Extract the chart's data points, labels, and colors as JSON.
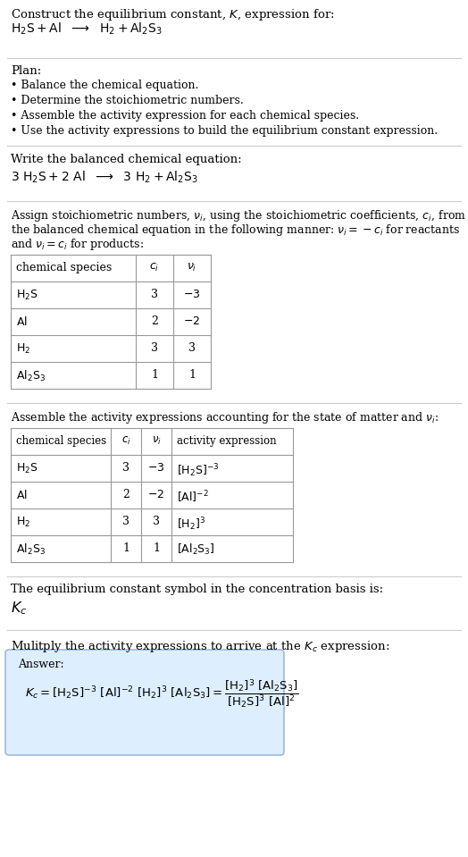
{
  "title_line1": "Construct the equilibrium constant, $K$, expression for:",
  "title_line2": "$\\mathrm{H_2S + Al}$  $\\longrightarrow$  $\\mathrm{H_2 + Al_2S_3}$",
  "plan_header": "Plan:",
  "plan_bullets": [
    "• Balance the chemical equation.",
    "• Determine the stoichiometric numbers.",
    "• Assemble the activity expression for each chemical species.",
    "• Use the activity expressions to build the equilibrium constant expression."
  ],
  "balanced_header": "Write the balanced chemical equation:",
  "balanced_eq": "$3\\ \\mathrm{H_2S} + 2\\ \\mathrm{Al}$  $\\longrightarrow$  $3\\ \\mathrm{H_2} + \\mathrm{Al_2S_3}$",
  "stoich_header_parts": [
    "Assign stoichiometric numbers, $\\nu_i$, using the stoichiometric coefficients, $c_i$, from",
    "the balanced chemical equation in the following manner: $\\nu_i = -c_i$ for reactants",
    "and $\\nu_i = c_i$ for products:"
  ],
  "table1_cols": [
    "chemical species",
    "$c_i$",
    "$\\nu_i$"
  ],
  "table1_rows": [
    [
      "$\\mathrm{H_2S}$",
      "3",
      "$-3$"
    ],
    [
      "$\\mathrm{Al}$",
      "2",
      "$-2$"
    ],
    [
      "$\\mathrm{H_2}$",
      "3",
      "3"
    ],
    [
      "$\\mathrm{Al_2S_3}$",
      "1",
      "1"
    ]
  ],
  "activity_header": "Assemble the activity expressions accounting for the state of matter and $\\nu_i$:",
  "table2_cols": [
    "chemical species",
    "$c_i$",
    "$\\nu_i$",
    "activity expression"
  ],
  "table2_rows": [
    [
      "$\\mathrm{H_2S}$",
      "3",
      "$-3$",
      "$[\\mathrm{H_2S}]^{-3}$"
    ],
    [
      "$\\mathrm{Al}$",
      "2",
      "$-2$",
      "$[\\mathrm{Al}]^{-2}$"
    ],
    [
      "$\\mathrm{H_2}$",
      "3",
      "3",
      "$[\\mathrm{H_2}]^3$"
    ],
    [
      "$\\mathrm{Al_2S_3}$",
      "1",
      "1",
      "$[\\mathrm{Al_2S_3}]$"
    ]
  ],
  "kc_symbol_header": "The equilibrium constant symbol in the concentration basis is:",
  "kc_symbol": "$K_c$",
  "multiply_header": "Mulitply the activity expressions to arrive at the $K_c$ expression:",
  "answer_label": "Answer:",
  "answer_eq": "$K_c = [\\mathrm{H_2S}]^{-3}\\ [\\mathrm{Al}]^{-2}\\ [\\mathrm{H_2}]^3\\ [\\mathrm{Al_2S_3}] = \\dfrac{[\\mathrm{H_2}]^3\\ [\\mathrm{Al_2S_3}]}{[\\mathrm{H_2S}]^3\\ [\\mathrm{Al}]^2}$",
  "bg_color": "#ffffff",
  "text_color": "#000000",
  "table_border_color": "#999999",
  "answer_box_bg": "#ddeeff",
  "answer_box_border": "#99bbdd",
  "separator_color": "#cccccc"
}
